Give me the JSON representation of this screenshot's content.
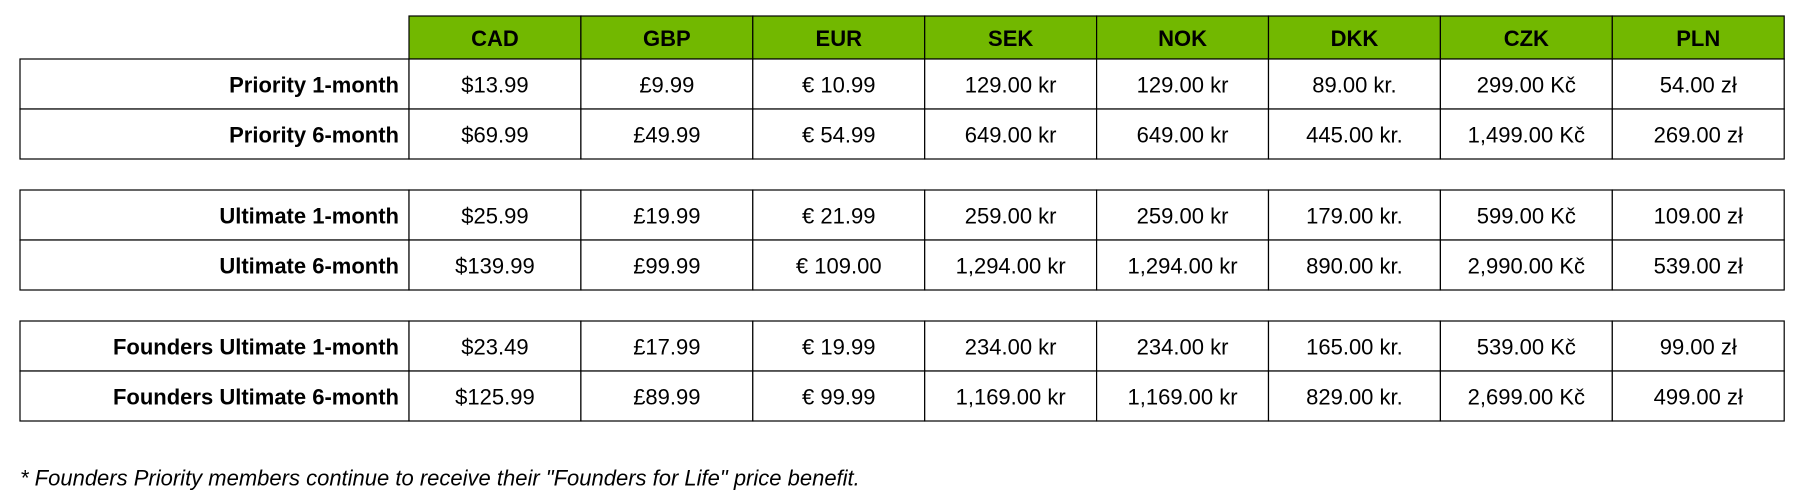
{
  "table": {
    "columns": [
      "CAD",
      "GBP",
      "EUR",
      "SEK",
      "NOK",
      "DKK",
      "CZK",
      "PLN"
    ],
    "groups": [
      {
        "rows": [
          {
            "label": "Priority 1-month",
            "cells": [
              "$13.99",
              "£9.99",
              "€ 10.99",
              "129.00 kr",
              "129.00 kr",
              "89.00 kr.",
              "299.00 Kč",
              "54.00 zł"
            ]
          },
          {
            "label": "Priority 6-month",
            "cells": [
              "$69.99",
              "£49.99",
              "€ 54.99",
              "649.00 kr",
              "649.00 kr",
              "445.00 kr.",
              "1,499.00 Kč",
              "269.00 zł"
            ]
          }
        ]
      },
      {
        "rows": [
          {
            "label": "Ultimate 1-month",
            "cells": [
              "$25.99",
              "£19.99",
              "€ 21.99",
              "259.00 kr",
              "259.00 kr",
              "179.00 kr.",
              "599.00 Kč",
              "109.00 zł"
            ]
          },
          {
            "label": "Ultimate 6-month",
            "cells": [
              "$139.99",
              "£99.99",
              "€ 109.00",
              "1,294.00 kr",
              "1,294.00 kr",
              "890.00 kr.",
              "2,990.00 Kč",
              "539.00 zł"
            ]
          }
        ]
      },
      {
        "rows": [
          {
            "label": "Founders Ultimate 1-month",
            "cells": [
              "$23.49",
              "£17.99",
              "€ 19.99",
              "234.00 kr",
              "234.00 kr",
              "165.00 kr.",
              "539.00 Kč",
              "99.00 zł"
            ]
          },
          {
            "label": "Founders Ultimate 6-month",
            "cells": [
              "$125.99",
              "£89.99",
              "€ 99.99",
              "1,169.00 kr",
              "1,169.00 kr",
              "829.00 kr.",
              "2,699.00 Kč",
              "499.00 zł"
            ]
          }
        ]
      }
    ]
  },
  "footnote": "* Founders Priority members continue to receive their \"Founders for Life\" price benefit."
}
